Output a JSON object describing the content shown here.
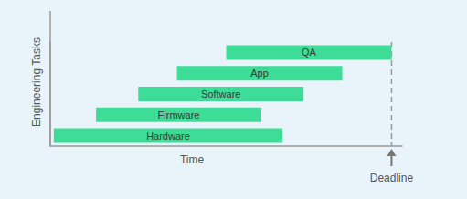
{
  "chart_data": {
    "type": "gantt",
    "y_label": "Engineering Tasks",
    "x_label": "Time",
    "categories": [
      "Hardware",
      "Firmware",
      "Software",
      "App",
      "QA"
    ],
    "starts": [
      1,
      13,
      25,
      36,
      50
    ],
    "ends": [
      66,
      60,
      72,
      83,
      97
    ],
    "color": "#3ddc97",
    "xlim": [
      0,
      100
    ],
    "tick_labels": false,
    "grid": false,
    "data_labels": true,
    "annotations": [
      {
        "text": "Deadline",
        "x": 97
      }
    ]
  }
}
